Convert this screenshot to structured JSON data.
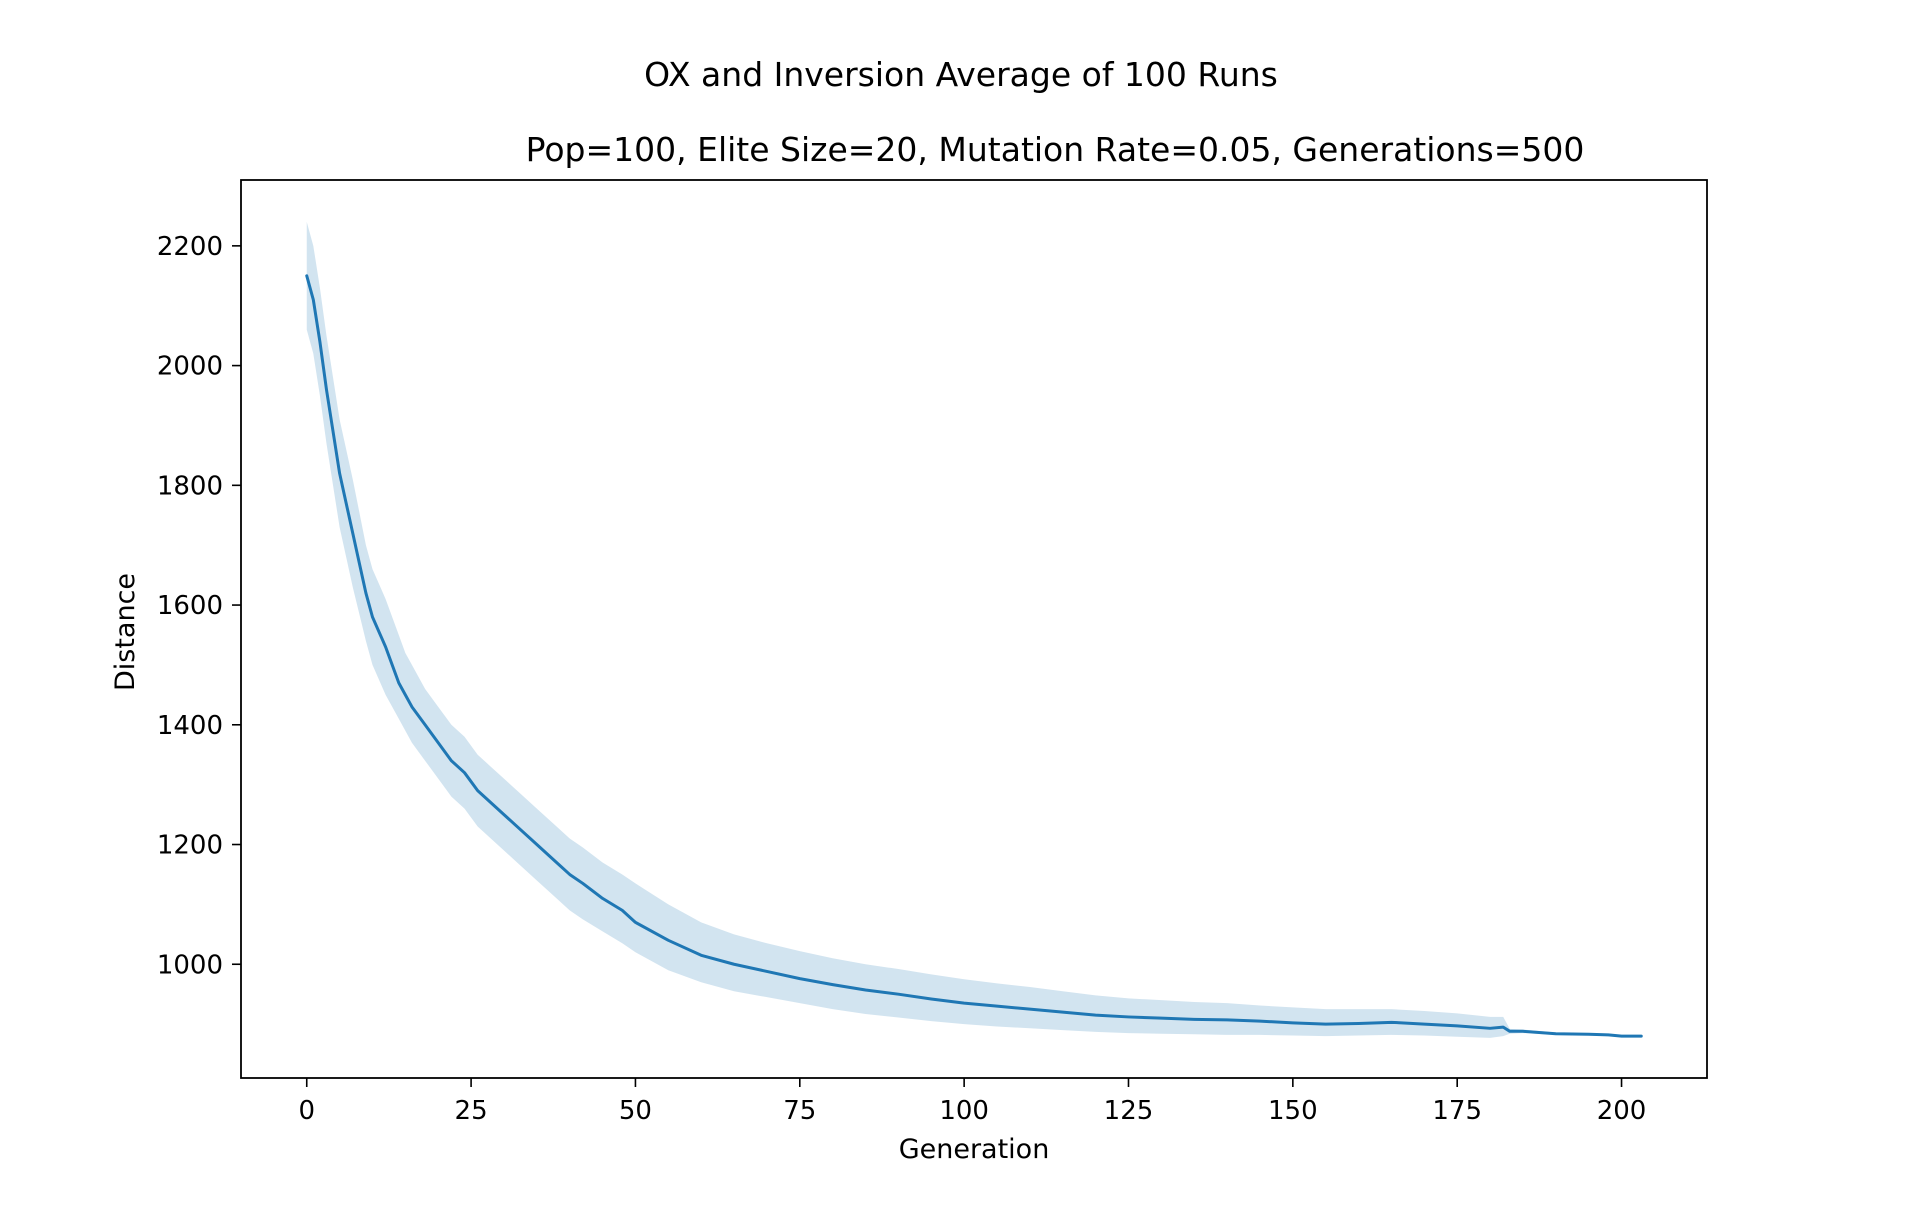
{
  "chart_data": {
    "type": "line",
    "title": "OX and Inversion Average of 100 Runs",
    "subtitle": "Pop=100, Elite Size=20, Mutation Rate=0.05, Generations=500",
    "xlabel": "Generation",
    "ylabel": "Distance",
    "xlim": [
      -10,
      213
    ],
    "ylim": [
      810,
      2310
    ],
    "xticks": [
      0,
      25,
      50,
      75,
      100,
      125,
      150,
      175,
      200
    ],
    "yticks": [
      1000,
      1200,
      1400,
      1600,
      1800,
      2000,
      2200
    ],
    "grid": false,
    "legend": "none",
    "colors": {
      "line": "#1f77b4",
      "band": "#1f77b4",
      "band_opacity": 0.2
    },
    "series": [
      {
        "x": [
          0,
          1,
          2,
          3,
          4,
          5,
          6,
          7,
          8,
          9,
          10,
          12,
          14,
          15,
          16,
          18,
          20,
          22,
          24,
          26,
          28,
          30,
          32,
          35,
          38,
          40,
          42,
          45,
          48,
          50,
          55,
          60,
          65,
          70,
          75,
          80,
          85,
          90,
          95,
          100,
          105,
          110,
          115,
          120,
          125,
          130,
          135,
          140,
          145,
          150,
          155,
          160,
          165,
          170,
          175,
          180,
          182,
          183,
          185,
          190,
          195,
          198,
          200,
          203
        ],
        "y": [
          2150,
          2110,
          2040,
          1960,
          1890,
          1820,
          1770,
          1720,
          1670,
          1620,
          1580,
          1530,
          1470,
          1450,
          1430,
          1400,
          1370,
          1340,
          1320,
          1290,
          1270,
          1250,
          1230,
          1200,
          1170,
          1150,
          1135,
          1110,
          1090,
          1070,
          1040,
          1015,
          1000,
          988,
          976,
          966,
          957,
          950,
          942,
          935,
          930,
          925,
          920,
          915,
          912,
          910,
          908,
          907,
          905,
          902,
          900,
          901,
          903,
          900,
          897,
          893,
          895,
          888,
          888,
          884,
          883,
          882,
          880,
          880
        ],
        "lower": [
          2060,
          2020,
          1950,
          1870,
          1800,
          1730,
          1680,
          1630,
          1585,
          1540,
          1500,
          1450,
          1410,
          1390,
          1370,
          1340,
          1310,
          1280,
          1260,
          1230,
          1210,
          1190,
          1170,
          1140,
          1110,
          1090,
          1075,
          1055,
          1035,
          1020,
          990,
          970,
          955,
          945,
          935,
          925,
          917,
          911,
          905,
          900,
          896,
          893,
          890,
          887,
          885,
          884,
          883,
          882,
          882,
          881,
          880,
          881,
          882,
          881,
          879,
          877,
          880,
          884,
          885,
          882,
          881,
          880,
          879,
          879
        ],
        "upper": [
          2240,
          2200,
          2130,
          2050,
          1980,
          1910,
          1860,
          1810,
          1755,
          1700,
          1660,
          1610,
          1550,
          1520,
          1500,
          1460,
          1430,
          1400,
          1380,
          1350,
          1330,
          1310,
          1290,
          1260,
          1230,
          1210,
          1195,
          1170,
          1150,
          1135,
          1100,
          1070,
          1050,
          1035,
          1022,
          1010,
          1000,
          992,
          983,
          975,
          968,
          962,
          955,
          948,
          943,
          940,
          937,
          935,
          931,
          928,
          925,
          925,
          925,
          922,
          918,
          912,
          912,
          892,
          891,
          886,
          885,
          884,
          881,
          881
        ]
      }
    ]
  }
}
